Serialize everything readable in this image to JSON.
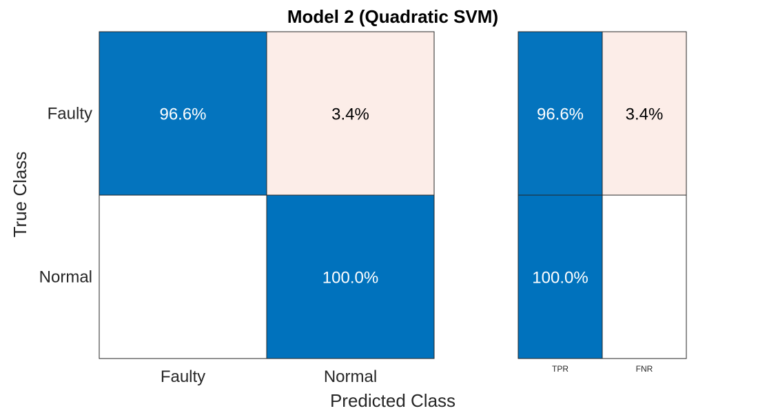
{
  "chart_data": {
    "type": "heatmap",
    "title": "Model 2 (Quadratic SVM)",
    "xlabel": "Predicted Class",
    "ylabel": "True Class",
    "row_labels": [
      "Faulty",
      "Normal"
    ],
    "col_labels": [
      "Faulty",
      "Normal"
    ],
    "matrix": [
      [
        96.6,
        3.4
      ],
      [
        0.0,
        100.0
      ]
    ],
    "cell_text": [
      [
        "96.6%",
        "3.4%"
      ],
      [
        "",
        "100.0%"
      ]
    ],
    "summary": {
      "col_labels": [
        "TPR",
        "FNR"
      ],
      "matrix": [
        [
          96.6,
          3.4
        ],
        [
          100.0,
          0.0
        ]
      ],
      "cell_text": [
        [
          "96.6%",
          "3.4%"
        ],
        [
          "100.0%",
          ""
        ]
      ]
    },
    "colors": {
      "high": "#0072bd",
      "low": "#ffffff",
      "tint": "#fcede8",
      "light_text": "#ffffff",
      "dark_text": "#000000",
      "border": "#262626"
    }
  }
}
